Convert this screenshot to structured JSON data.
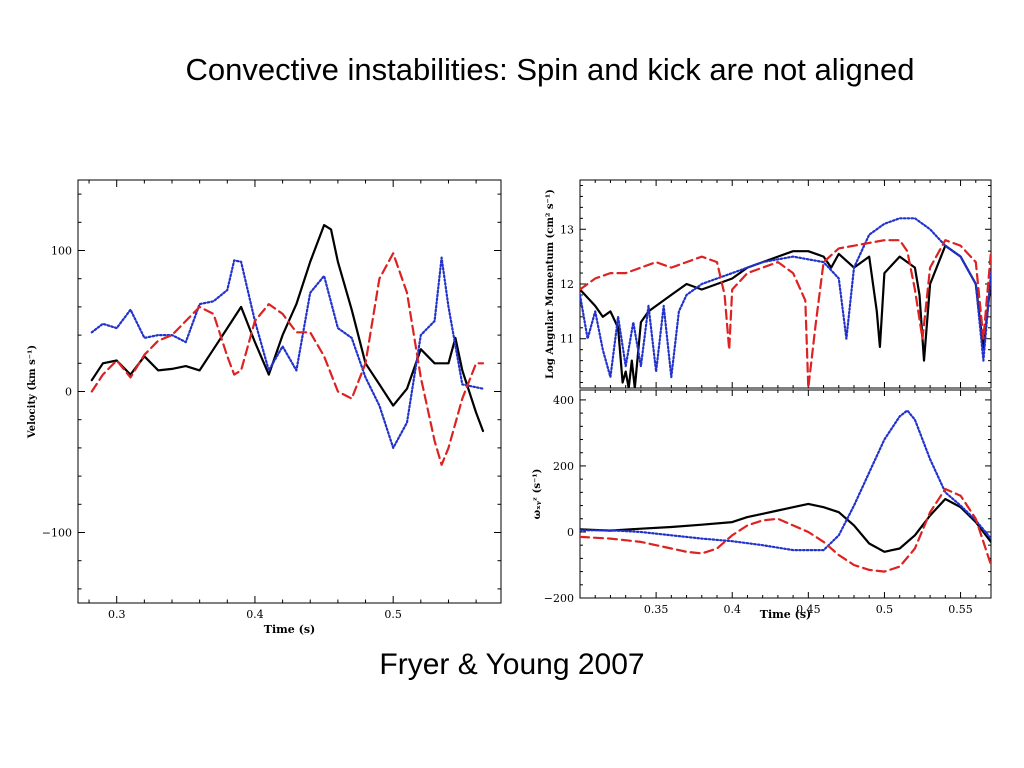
{
  "slide": {
    "title": "Convective instabilities:  Spin and kick are not aligned",
    "credit": "Fryer & Young 2007"
  },
  "chart_data": [
    {
      "id": "velocity",
      "type": "line",
      "xlabel": "Time (s)",
      "ylabel": "Velocity (km s⁻¹)",
      "xlim": [
        0.272,
        0.578
      ],
      "ylim": [
        -150,
        150
      ],
      "xticks": [
        0.3,
        0.4,
        0.5
      ],
      "xtick_labels": [
        "0.3",
        "0.4",
        "0.5"
      ],
      "yticks": [
        100,
        0,
        -100
      ],
      "ytick_labels": [
        "100",
        "0",
        "−100"
      ],
      "series": [
        {
          "style": "solid",
          "color": "#000000",
          "x": [
            0.282,
            0.29,
            0.3,
            0.31,
            0.32,
            0.33,
            0.34,
            0.35,
            0.36,
            0.37,
            0.38,
            0.39,
            0.4,
            0.41,
            0.42,
            0.43,
            0.44,
            0.45,
            0.455,
            0.46,
            0.47,
            0.48,
            0.49,
            0.5,
            0.51,
            0.52,
            0.53,
            0.54,
            0.545,
            0.55,
            0.56,
            0.565
          ],
          "y": [
            8,
            20,
            22,
            12,
            25,
            15,
            16,
            18,
            15,
            30,
            45,
            60,
            35,
            12,
            40,
            62,
            92,
            118,
            115,
            92,
            58,
            20,
            5,
            -10,
            2,
            30,
            20,
            20,
            38,
            15,
            -15,
            -28
          ]
        },
        {
          "style": "dotted",
          "color": "#2233cc",
          "x": [
            0.282,
            0.29,
            0.3,
            0.31,
            0.32,
            0.33,
            0.34,
            0.35,
            0.36,
            0.37,
            0.38,
            0.385,
            0.39,
            0.4,
            0.41,
            0.42,
            0.43,
            0.44,
            0.45,
            0.46,
            0.47,
            0.48,
            0.49,
            0.5,
            0.51,
            0.52,
            0.53,
            0.535,
            0.54,
            0.55,
            0.565
          ],
          "y": [
            42,
            48,
            45,
            58,
            38,
            40,
            40,
            35,
            62,
            64,
            72,
            93,
            92,
            50,
            15,
            32,
            15,
            70,
            82,
            45,
            38,
            10,
            -10,
            -40,
            -22,
            40,
            50,
            95,
            60,
            5,
            2
          ]
        },
        {
          "style": "dashed",
          "color": "#dd2222",
          "x": [
            0.282,
            0.29,
            0.3,
            0.31,
            0.32,
            0.33,
            0.34,
            0.35,
            0.36,
            0.37,
            0.38,
            0.385,
            0.39,
            0.4,
            0.41,
            0.42,
            0.43,
            0.44,
            0.45,
            0.46,
            0.47,
            0.48,
            0.49,
            0.5,
            0.51,
            0.52,
            0.53,
            0.535,
            0.54,
            0.55,
            0.56,
            0.565
          ],
          "y": [
            0,
            12,
            22,
            10,
            26,
            36,
            40,
            50,
            60,
            55,
            25,
            12,
            15,
            50,
            62,
            55,
            42,
            42,
            25,
            0,
            -5,
            20,
            80,
            98,
            70,
            10,
            -35,
            -52,
            -40,
            -5,
            20,
            20
          ]
        }
      ]
    },
    {
      "id": "angular-momentum",
      "type": "line",
      "xlabel": "",
      "ylabel": "Log Angular Momentum (cm² s⁻¹)",
      "xlim": [
        0.3,
        0.57
      ],
      "ylim": [
        10.1,
        13.9
      ],
      "xticks": [
        0.35,
        0.4,
        0.45,
        0.5,
        0.55
      ],
      "yticks": [
        11,
        12,
        13
      ],
      "ytick_labels": [
        "11",
        "12",
        "13"
      ],
      "series": [
        {
          "style": "solid",
          "color": "#000000",
          "x": [
            0.3,
            0.31,
            0.315,
            0.32,
            0.325,
            0.328,
            0.33,
            0.332,
            0.334,
            0.336,
            0.34,
            0.345,
            0.35,
            0.36,
            0.37,
            0.38,
            0.39,
            0.4,
            0.41,
            0.42,
            0.43,
            0.44,
            0.45,
            0.46,
            0.465,
            0.47,
            0.48,
            0.49,
            0.495,
            0.497,
            0.5,
            0.51,
            0.52,
            0.523,
            0.526,
            0.53,
            0.54,
            0.55,
            0.56,
            0.565,
            0.57
          ],
          "y": [
            11.9,
            11.6,
            11.4,
            11.5,
            11.2,
            10.2,
            10.4,
            10.1,
            10.6,
            10.1,
            11.3,
            11.5,
            11.6,
            11.8,
            12.0,
            11.9,
            12.0,
            12.1,
            12.3,
            12.4,
            12.5,
            12.6,
            12.6,
            12.5,
            12.3,
            12.55,
            12.3,
            12.5,
            11.5,
            10.85,
            12.2,
            12.5,
            12.3,
            11.8,
            10.6,
            12.0,
            12.7,
            12.5,
            12.0,
            10.8,
            12.1
          ]
        },
        {
          "style": "dotted",
          "color": "#2233cc",
          "x": [
            0.3,
            0.305,
            0.31,
            0.315,
            0.32,
            0.325,
            0.33,
            0.335,
            0.34,
            0.345,
            0.35,
            0.355,
            0.36,
            0.365,
            0.37,
            0.38,
            0.39,
            0.4,
            0.42,
            0.44,
            0.46,
            0.47,
            0.475,
            0.48,
            0.49,
            0.5,
            0.51,
            0.52,
            0.53,
            0.54,
            0.55,
            0.56,
            0.565,
            0.57
          ],
          "y": [
            11.8,
            11.0,
            11.5,
            10.8,
            10.3,
            11.4,
            10.5,
            11.3,
            10.5,
            11.6,
            10.4,
            11.6,
            10.3,
            11.5,
            11.8,
            12.0,
            12.1,
            12.2,
            12.4,
            12.5,
            12.4,
            12.1,
            11.0,
            12.3,
            12.9,
            13.1,
            13.2,
            13.2,
            13.0,
            12.7,
            12.5,
            12.0,
            10.6,
            12.2
          ]
        },
        {
          "style": "dashed",
          "color": "#dd2222",
          "x": [
            0.3,
            0.31,
            0.32,
            0.33,
            0.34,
            0.35,
            0.36,
            0.37,
            0.38,
            0.39,
            0.395,
            0.398,
            0.4,
            0.41,
            0.42,
            0.43,
            0.44,
            0.448,
            0.45,
            0.455,
            0.46,
            0.47,
            0.48,
            0.49,
            0.5,
            0.51,
            0.515,
            0.52,
            0.525,
            0.53,
            0.54,
            0.55,
            0.56,
            0.565,
            0.57
          ],
          "y": [
            11.9,
            12.1,
            12.2,
            12.2,
            12.3,
            12.4,
            12.3,
            12.4,
            12.5,
            12.4,
            11.8,
            10.8,
            11.9,
            12.2,
            12.3,
            12.4,
            12.2,
            11.7,
            10.1,
            11.3,
            12.4,
            12.65,
            12.7,
            12.75,
            12.8,
            12.8,
            12.6,
            11.9,
            11.0,
            12.3,
            12.8,
            12.7,
            12.4,
            11.0,
            12.6
          ]
        }
      ]
    },
    {
      "id": "omega-xyz",
      "type": "line",
      "xlabel": "Time (s)",
      "ylabel": "ωₓᵧᶻ (s⁻¹)",
      "xlim": [
        0.3,
        0.57
      ],
      "ylim": [
        -200,
        430
      ],
      "xticks": [
        0.35,
        0.4,
        0.45,
        0.5,
        0.55
      ],
      "xtick_labels": [
        "0.35",
        "0.4",
        "0.45",
        "0.5",
        "0.55"
      ],
      "yticks": [
        400,
        200,
        0,
        -200
      ],
      "ytick_labels": [
        "400",
        "200",
        "0",
        "−200"
      ],
      "series": [
        {
          "style": "solid",
          "color": "#000000",
          "x": [
            0.3,
            0.32,
            0.34,
            0.36,
            0.38,
            0.4,
            0.41,
            0.42,
            0.43,
            0.44,
            0.45,
            0.46,
            0.47,
            0.48,
            0.49,
            0.5,
            0.51,
            0.52,
            0.53,
            0.54,
            0.55,
            0.56,
            0.57
          ],
          "y": [
            8,
            4,
            10,
            15,
            22,
            30,
            45,
            55,
            65,
            75,
            85,
            75,
            60,
            20,
            -35,
            -60,
            -50,
            -10,
            50,
            100,
            75,
            30,
            -30
          ]
        },
        {
          "style": "dotted",
          "color": "#2233cc",
          "x": [
            0.3,
            0.32,
            0.34,
            0.36,
            0.38,
            0.4,
            0.42,
            0.44,
            0.46,
            0.47,
            0.48,
            0.49,
            0.5,
            0.51,
            0.515,
            0.52,
            0.53,
            0.54,
            0.55,
            0.56,
            0.57
          ],
          "y": [
            5,
            5,
            0,
            -10,
            -20,
            -28,
            -40,
            -55,
            -55,
            -10,
            80,
            180,
            280,
            350,
            368,
            340,
            220,
            120,
            80,
            35,
            -20
          ]
        },
        {
          "style": "dashed",
          "color": "#dd2222",
          "x": [
            0.3,
            0.32,
            0.34,
            0.36,
            0.37,
            0.38,
            0.39,
            0.4,
            0.41,
            0.42,
            0.43,
            0.44,
            0.45,
            0.46,
            0.47,
            0.48,
            0.49,
            0.5,
            0.51,
            0.52,
            0.53,
            0.54,
            0.55,
            0.56,
            0.57
          ],
          "y": [
            -15,
            -20,
            -30,
            -50,
            -60,
            -65,
            -50,
            -10,
            20,
            35,
            40,
            20,
            0,
            -30,
            -70,
            -100,
            -115,
            -120,
            -105,
            -50,
            60,
            130,
            110,
            40,
            -100
          ]
        }
      ]
    }
  ]
}
